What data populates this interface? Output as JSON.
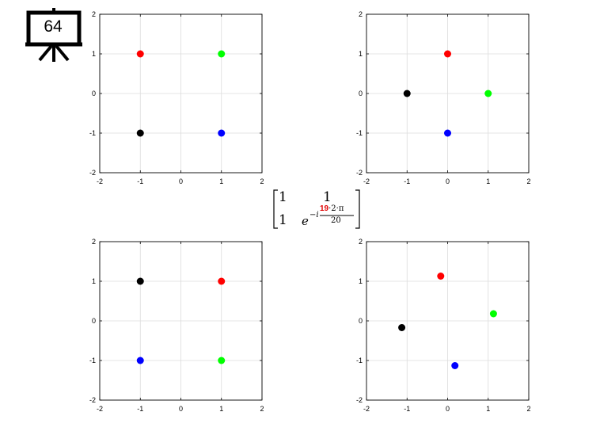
{
  "slide_number": "64",
  "matrix": {
    "r1c1": "1",
    "r1c2": "1",
    "r2c1": "1",
    "base": "e",
    "exp_prefix": "−i",
    "exp_highlight": "19",
    "exp_rest": "·2·π",
    "exp_denominator": "20",
    "highlight_color": "#e00000"
  },
  "chart_data": [
    {
      "type": "scatter",
      "xlim": [
        -2,
        2
      ],
      "ylim": [
        -2,
        2
      ],
      "xticks": [
        "-2",
        "-1",
        "0",
        "1",
        "2"
      ],
      "yticks": [
        "-2",
        "-1",
        "0",
        "1",
        "2"
      ],
      "grid": true,
      "points": [
        {
          "x": -1,
          "y": 1,
          "color": "#ff0000"
        },
        {
          "x": 1,
          "y": 1,
          "color": "#00ff00"
        },
        {
          "x": -1,
          "y": -1,
          "color": "#000000"
        },
        {
          "x": 1,
          "y": -1,
          "color": "#0000ff"
        }
      ]
    },
    {
      "type": "scatter",
      "xlim": [
        -2,
        2
      ],
      "ylim": [
        -2,
        2
      ],
      "xticks": [
        "-2",
        "-1",
        "0",
        "1",
        "2"
      ],
      "yticks": [
        "-2",
        "-1",
        "0",
        "1",
        "2"
      ],
      "grid": true,
      "points": [
        {
          "x": 0,
          "y": 1,
          "color": "#ff0000"
        },
        {
          "x": -1,
          "y": 0,
          "color": "#000000"
        },
        {
          "x": 1,
          "y": 0,
          "color": "#00ff00"
        },
        {
          "x": 0,
          "y": -1,
          "color": "#0000ff"
        }
      ]
    },
    {
      "type": "scatter",
      "xlim": [
        -2,
        2
      ],
      "ylim": [
        -2,
        2
      ],
      "xticks": [
        "-2",
        "-1",
        "0",
        "1",
        "2"
      ],
      "yticks": [
        "-2",
        "-1",
        "0",
        "1",
        "2"
      ],
      "grid": true,
      "points": [
        {
          "x": -1,
          "y": 1,
          "color": "#000000"
        },
        {
          "x": 1,
          "y": 1,
          "color": "#ff0000"
        },
        {
          "x": -1,
          "y": -1,
          "color": "#0000ff"
        },
        {
          "x": 1,
          "y": -1,
          "color": "#00ff00"
        }
      ]
    },
    {
      "type": "scatter",
      "xlim": [
        -2,
        2
      ],
      "ylim": [
        -2,
        2
      ],
      "xticks": [
        "-2",
        "-1",
        "0",
        "1",
        "2"
      ],
      "yticks": [
        "-2",
        "-1",
        "0",
        "1",
        "2"
      ],
      "grid": true,
      "points": [
        {
          "x": -0.17,
          "y": 1.13,
          "color": "#ff0000"
        },
        {
          "x": 1.13,
          "y": 0.18,
          "color": "#00ff00"
        },
        {
          "x": -1.13,
          "y": -0.17,
          "color": "#000000"
        },
        {
          "x": 0.18,
          "y": -1.13,
          "color": "#0000ff"
        }
      ]
    }
  ]
}
